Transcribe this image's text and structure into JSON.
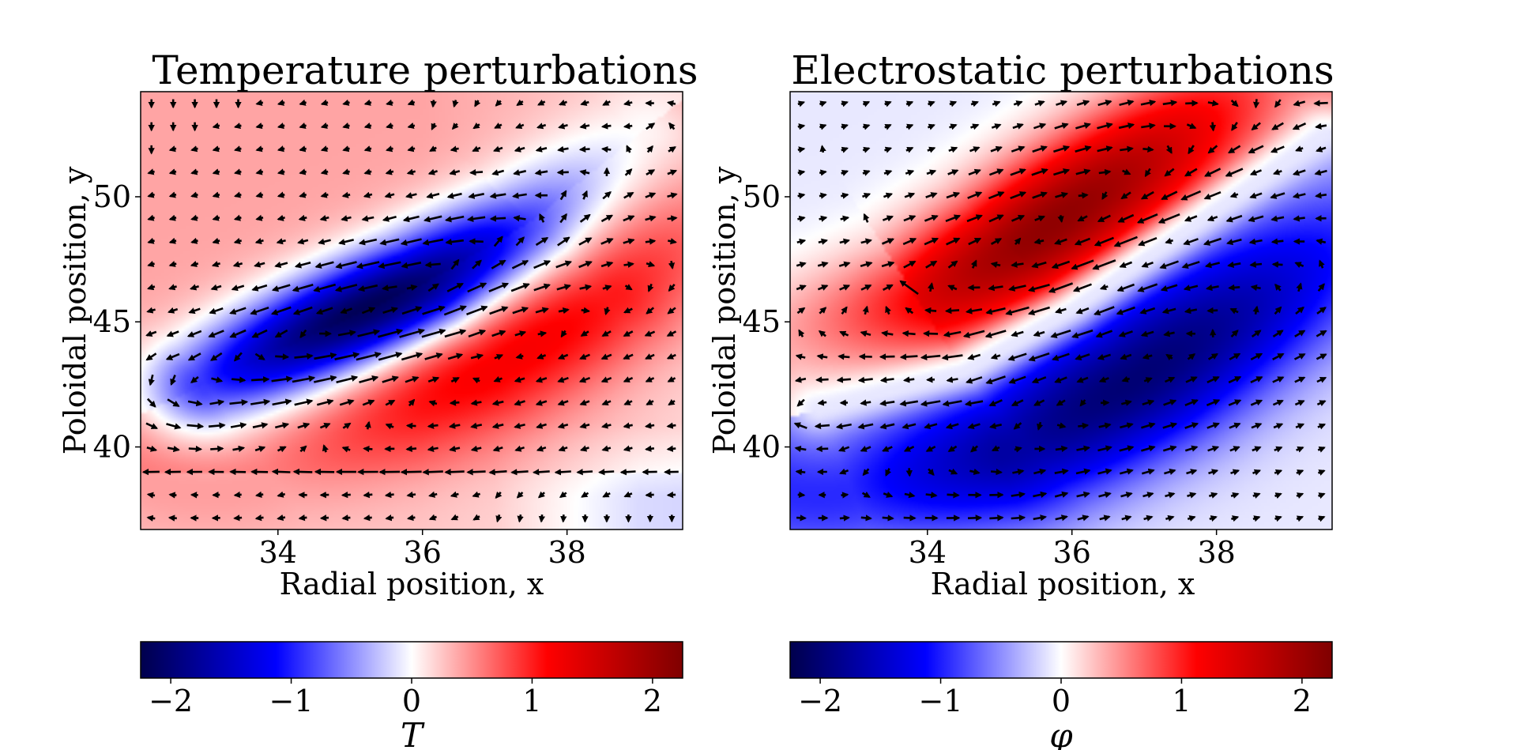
{
  "chart_data": [
    {
      "type": "heatmap",
      "title": "Temperature perturbations",
      "xlabel": "Radial position, x",
      "ylabel": "Poloidal position, y",
      "xlim": [
        32.1,
        39.6
      ],
      "ylim": [
        36.7,
        54.2
      ],
      "xticks": [
        34,
        36,
        38
      ],
      "yticks": [
        40,
        45,
        50
      ],
      "xtick_labels": [
        "34",
        "36",
        "38"
      ],
      "ytick_labels": [
        "40",
        "45",
        "50"
      ],
      "colormap": "seismic",
      "overlay": "quiver (velocity arrows)",
      "field": {
        "description": "blob: negative core along ridge, positive surrounding",
        "ridge": [
          [
            33.0,
            42.5
          ],
          [
            34.5,
            44.5
          ],
          [
            36.0,
            46.5
          ],
          [
            37.5,
            49.0
          ],
          [
            39.0,
            52.5
          ]
        ],
        "core_value": -2.2,
        "flank_value": 0.9,
        "background_value": 0.4,
        "far_value": -0.3
      },
      "colorbar": {
        "label": "T",
        "range": [
          -2.25,
          2.25
        ],
        "ticks": [
          -2,
          -1,
          0,
          1,
          2
        ],
        "tick_labels": [
          "−2",
          "−1",
          "0",
          "1",
          "2"
        ]
      }
    },
    {
      "type": "heatmap",
      "title": "Electrostatic perturbations",
      "xlabel": "Radial position, x",
      "ylabel": "Poloidal position, y",
      "xlim": [
        32.1,
        39.6
      ],
      "ylim": [
        36.7,
        54.2
      ],
      "xticks": [
        34,
        36,
        38
      ],
      "yticks": [
        40,
        45,
        50
      ],
      "xtick_labels": [
        "34",
        "36",
        "38"
      ],
      "ytick_labels": [
        "40",
        "45",
        "50"
      ],
      "colormap": "seismic",
      "overlay": "quiver (velocity arrows)",
      "field": {
        "description": "dipole: positive above ridge, negative below",
        "ridge": [
          [
            32.5,
            41.5
          ],
          [
            34.5,
            43.0
          ],
          [
            36.0,
            45.5
          ],
          [
            37.5,
            48.5
          ],
          [
            39.5,
            52.5
          ]
        ],
        "positive_peak": 2.2,
        "negative_peak": -1.9,
        "background_value": -0.1
      },
      "colorbar": {
        "label": "φ",
        "range": [
          -2.25,
          2.25
        ],
        "ticks": [
          -2,
          -1,
          0,
          1,
          2
        ],
        "tick_labels": [
          "−2",
          "−1",
          "0",
          "1",
          "2"
        ]
      }
    }
  ],
  "colors": {
    "seismic_stops": [
      "#00004c",
      "#0000ff",
      "#ffffff",
      "#ff0000",
      "#7f0000"
    ]
  }
}
